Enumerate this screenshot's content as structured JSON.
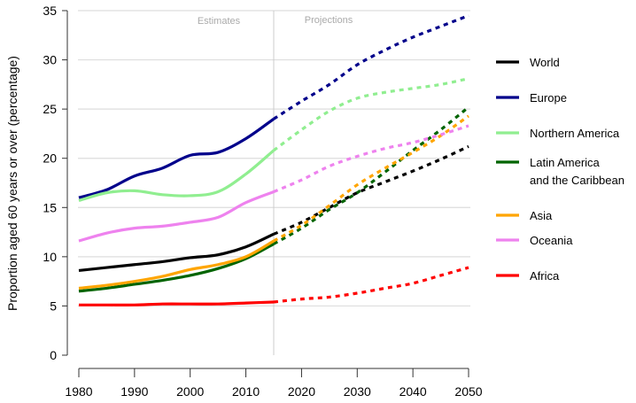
{
  "chart_data": {
    "type": "line",
    "title": "",
    "xlabel": "",
    "ylabel": "Proportion aged 60 years or over (percentage)",
    "xlim": [
      1980,
      2050
    ],
    "ylim": [
      0,
      35
    ],
    "xticks": [
      1980,
      1990,
      2000,
      2010,
      2020,
      2030,
      2040,
      2050
    ],
    "yticks": [
      0,
      5,
      10,
      15,
      20,
      25,
      30,
      35
    ],
    "grid": "horizontal",
    "legend_position": "right",
    "annotations": {
      "estimates": "Estimates",
      "projections": "Projections",
      "split_year": 2015
    },
    "x": [
      1980,
      1985,
      1990,
      1995,
      2000,
      2005,
      2010,
      2015,
      2020,
      2025,
      2030,
      2035,
      2040,
      2045,
      2050
    ],
    "series": [
      {
        "name": "World",
        "legend": [
          "World"
        ],
        "color": "#000000",
        "values": [
          8.6,
          8.9,
          9.2,
          9.5,
          9.9,
          10.2,
          11.0,
          12.3,
          13.5,
          15.0,
          16.5,
          17.6,
          18.7,
          19.9,
          21.2
        ]
      },
      {
        "name": "Europe",
        "legend": [
          "Europe"
        ],
        "color": "#00008B",
        "values": [
          16.0,
          16.8,
          18.2,
          19.0,
          20.3,
          20.6,
          22.0,
          24.0,
          25.8,
          27.5,
          29.5,
          31.0,
          32.3,
          33.4,
          34.5
        ]
      },
      {
        "name": "Northern America",
        "legend": [
          "Northern America"
        ],
        "color": "#90EE90",
        "values": [
          15.7,
          16.5,
          16.7,
          16.3,
          16.2,
          16.6,
          18.4,
          20.8,
          22.9,
          24.8,
          26.1,
          26.7,
          27.1,
          27.5,
          28.1
        ]
      },
      {
        "name": "Latin America and the Caribbean",
        "legend": [
          "Latin America",
          "and the Caribbean"
        ],
        "color": "#006400",
        "values": [
          6.5,
          6.8,
          7.2,
          7.6,
          8.1,
          8.8,
          9.8,
          11.3,
          12.9,
          14.8,
          16.5,
          18.6,
          20.8,
          22.9,
          25.2
        ]
      },
      {
        "name": "Asia",
        "legend": [
          "Asia"
        ],
        "color": "#FFA500",
        "values": [
          6.8,
          7.1,
          7.5,
          8.0,
          8.7,
          9.2,
          10.0,
          11.6,
          13.2,
          15.2,
          17.3,
          19.0,
          20.6,
          22.3,
          24.3
        ]
      },
      {
        "name": "Oceania",
        "legend": [
          "Oceania"
        ],
        "color": "#EE82EE",
        "values": [
          11.6,
          12.4,
          12.9,
          13.1,
          13.5,
          14.0,
          15.5,
          16.6,
          17.8,
          19.2,
          20.2,
          21.0,
          21.6,
          22.4,
          23.3
        ]
      },
      {
        "name": "Africa",
        "legend": [
          "Africa"
        ],
        "color": "#FF0000",
        "values": [
          5.1,
          5.1,
          5.1,
          5.2,
          5.2,
          5.2,
          5.3,
          5.4,
          5.7,
          5.9,
          6.3,
          6.8,
          7.3,
          8.1,
          8.9
        ]
      }
    ]
  }
}
